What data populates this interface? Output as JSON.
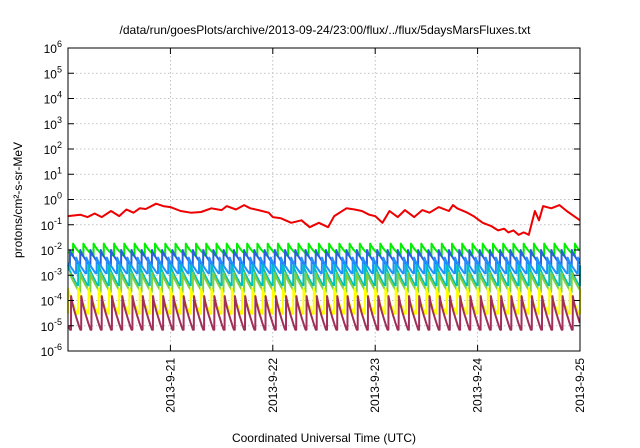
{
  "chart_data": {
    "type": "line",
    "title": "/data/run/goesPlots/archive/2013-09-24/23:00/flux/../flux/5daysMarsFluxes.txt",
    "xlabel": "Coordinated Universal Time (UTC)",
    "ylabel": "protons/cm²-s-sr-MeV",
    "xlim": [
      0,
      5
    ],
    "x_ticks": [
      {
        "x": 1,
        "label": "2013-9-21"
      },
      {
        "x": 2,
        "label": "2013-9-22"
      },
      {
        "x": 3,
        "label": "2013-9-23"
      },
      {
        "x": 4,
        "label": "2013-9-24"
      },
      {
        "x": 5,
        "label": "2013-9-25"
      }
    ],
    "ylim": [
      1e-06,
      1000000.0
    ],
    "y_scale": "log",
    "y_ticks": [
      {
        "exp": -6,
        "label": "10",
        "sup": "-6"
      },
      {
        "exp": -5,
        "label": "10",
        "sup": "-5"
      },
      {
        "exp": -4,
        "label": "10",
        "sup": "-4"
      },
      {
        "exp": -3,
        "label": "10",
        "sup": "-3"
      },
      {
        "exp": -2,
        "label": "10",
        "sup": "-2"
      },
      {
        "exp": -1,
        "label": "10",
        "sup": "-1"
      },
      {
        "exp": 0,
        "label": "10",
        "sup": "0"
      },
      {
        "exp": 1,
        "label": "10",
        "sup": "1"
      },
      {
        "exp": 2,
        "label": "10",
        "sup": "2"
      },
      {
        "exp": 3,
        "label": "10",
        "sup": "3"
      },
      {
        "exp": 4,
        "label": "10",
        "sup": "4"
      },
      {
        "exp": 5,
        "label": "10",
        "sup": "5"
      },
      {
        "exp": 6,
        "label": "10",
        "sup": "6"
      }
    ],
    "grid": true,
    "series": [
      {
        "color": "#ee0000",
        "x": [
          0,
          0.12,
          0.19,
          0.26,
          0.33,
          0.42,
          0.5,
          0.57,
          0.64,
          0.7,
          0.76,
          0.86,
          0.93,
          1.0,
          1.1,
          1.2,
          1.3,
          1.4,
          1.5,
          1.55,
          1.64,
          1.72,
          1.78,
          1.86,
          1.96,
          2.0,
          2.08,
          2.18,
          2.28,
          2.36,
          2.45,
          2.54,
          2.6,
          2.72,
          2.8,
          2.87,
          2.94,
          3.0,
          3.07,
          3.14,
          3.22,
          3.29,
          3.38,
          3.46,
          3.53,
          3.62,
          3.72,
          3.76,
          3.8,
          3.9,
          3.96,
          4.05,
          4.13,
          4.2,
          4.26,
          4.3,
          4.35,
          4.4,
          4.45,
          4.5,
          4.56,
          4.6,
          4.64,
          4.72,
          4.8,
          4.87,
          4.94,
          5.0
        ],
        "values": [
          0.22,
          0.25,
          0.2,
          0.28,
          0.2,
          0.35,
          0.22,
          0.4,
          0.3,
          0.45,
          0.42,
          0.68,
          0.55,
          0.5,
          0.35,
          0.3,
          0.32,
          0.45,
          0.38,
          0.55,
          0.4,
          0.6,
          0.45,
          0.38,
          0.3,
          0.2,
          0.18,
          0.12,
          0.15,
          0.08,
          0.12,
          0.08,
          0.22,
          0.45,
          0.4,
          0.35,
          0.25,
          0.22,
          0.12,
          0.35,
          0.2,
          0.38,
          0.2,
          0.38,
          0.3,
          0.5,
          0.35,
          0.6,
          0.45,
          0.3,
          0.22,
          0.12,
          0.09,
          0.06,
          0.07,
          0.05,
          0.06,
          0.04,
          0.05,
          0.04,
          0.35,
          0.15,
          0.55,
          0.45,
          0.6,
          0.35,
          0.22,
          0.15
        ]
      },
      {
        "color": "#00ee00",
        "peak": 0.018,
        "dip": 0.006,
        "phase": 0.05
      },
      {
        "color": "#2a60e0",
        "peak": 0.01,
        "dip": 0.0025,
        "phase": 0.02
      },
      {
        "color": "#1e90ff",
        "peak": 0.005,
        "dip": 0.0012,
        "phase": 0.08
      },
      {
        "color": "#00c0c0",
        "peak": 0.0025,
        "dip": 0.0004,
        "phase": 0.1
      },
      {
        "color": "#80d040",
        "peak": 0.0012,
        "dip": 0.00022,
        "phase": 0.12
      },
      {
        "color": "#ffff00",
        "peak": 0.0003,
        "dip": 3e-05,
        "phase": 0.0
      },
      {
        "color": "#a0305a",
        "peak": 0.00015,
        "dip": 7e-06,
        "phase": 0.03
      }
    ],
    "period_days": 0.1
  }
}
